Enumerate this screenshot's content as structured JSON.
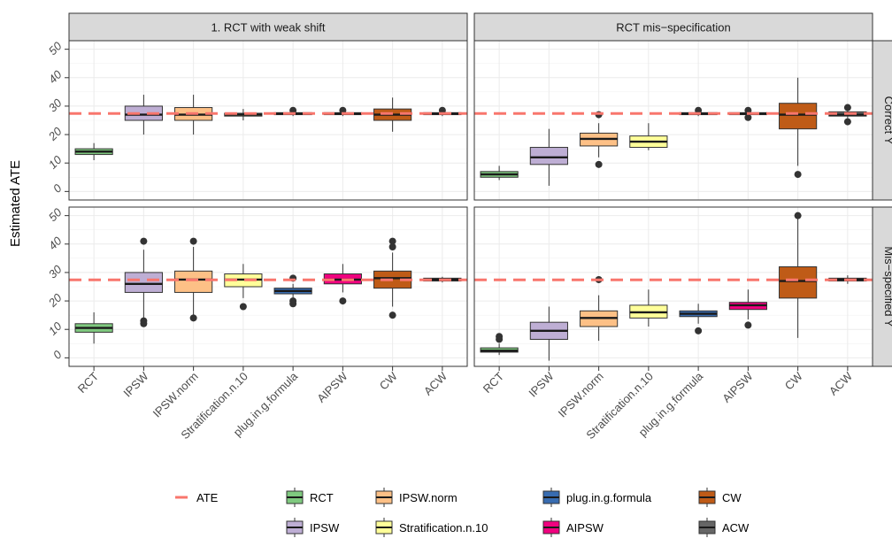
{
  "chart_data": {
    "type": "boxplot",
    "ylabel": "Estimated ATE",
    "xlabel": "",
    "ylim": [
      -3,
      53
    ],
    "yticks": [
      0,
      10,
      20,
      30,
      40,
      50
    ],
    "ate": 27.4,
    "categories": [
      "RCT",
      "IPSW",
      "IPSW.norm",
      "Stratification.n.10",
      "plug.in.g.formula",
      "AIPSW",
      "CW",
      "ACW"
    ],
    "columns": [
      "1. RCT with weak shift",
      "RCT mis−specification"
    ],
    "rows": [
      "Correct Y",
      "Mis−specified Y"
    ],
    "colors": {
      "RCT": "#7fc97f",
      "IPSW": "#beaed4",
      "IPSW.norm": "#fdc086",
      "Stratification.n.10": "#ffff99",
      "plug.in.g.formula": "#386cb0",
      "AIPSW": "#f0027f",
      "CW": "#bf5b17",
      "ACW": "#666666",
      "ate_line": "#f8766d"
    },
    "panels": [
      {
        "column": "1. RCT with weak shift",
        "row": "Correct Y",
        "boxes": [
          {
            "cat": "RCT",
            "min": 11,
            "q1": 13,
            "median": 14,
            "q3": 15,
            "max": 17,
            "outliers": []
          },
          {
            "cat": "IPSW",
            "min": 20,
            "q1": 25,
            "median": 27,
            "q3": 30,
            "max": 34,
            "outliers": []
          },
          {
            "cat": "IPSW.norm",
            "min": 20,
            "q1": 25,
            "median": 27,
            "q3": 29.5,
            "max": 34,
            "outliers": []
          },
          {
            "cat": "Stratification.n.10",
            "min": 25,
            "q1": 26.5,
            "median": 27,
            "q3": 27.5,
            "max": 29,
            "outliers": []
          },
          {
            "cat": "plug.in.g.formula",
            "min": 26.5,
            "q1": 27,
            "median": 27.3,
            "q3": 27.7,
            "max": 28,
            "outliers": [
              28.5
            ]
          },
          {
            "cat": "AIPSW",
            "min": 26.5,
            "q1": 27,
            "median": 27.3,
            "q3": 27.7,
            "max": 28,
            "outliers": [
              28.5
            ]
          },
          {
            "cat": "CW",
            "min": 21,
            "q1": 25,
            "median": 27,
            "q3": 29,
            "max": 33,
            "outliers": []
          },
          {
            "cat": "ACW",
            "min": 26.5,
            "q1": 27,
            "median": 27.3,
            "q3": 27.7,
            "max": 28,
            "outliers": [
              28.5
            ]
          }
        ]
      },
      {
        "column": "RCT mis−specification",
        "row": "Correct Y",
        "boxes": [
          {
            "cat": "RCT",
            "min": 4,
            "q1": 5,
            "median": 6,
            "q3": 7,
            "max": 9,
            "outliers": []
          },
          {
            "cat": "IPSW",
            "min": 2,
            "q1": 9.5,
            "median": 12,
            "q3": 15.5,
            "max": 22,
            "outliers": []
          },
          {
            "cat": "IPSW.norm",
            "min": 12,
            "q1": 16,
            "median": 18.5,
            "q3": 20.5,
            "max": 24,
            "outliers": [
              27,
              9.5
            ]
          },
          {
            "cat": "Stratification.n.10",
            "min": 14.5,
            "q1": 15.5,
            "median": 17.5,
            "q3": 19.5,
            "max": 24,
            "outliers": []
          },
          {
            "cat": "plug.in.g.formula",
            "min": 26.5,
            "q1": 27,
            "median": 27.3,
            "q3": 27.7,
            "max": 28,
            "outliers": [
              28.5
            ]
          },
          {
            "cat": "AIPSW",
            "min": 26,
            "q1": 27,
            "median": 27.3,
            "q3": 27.7,
            "max": 28,
            "outliers": [
              28.5,
              26
            ]
          },
          {
            "cat": "CW",
            "min": 9,
            "q1": 22,
            "median": 27,
            "q3": 31,
            "max": 40,
            "outliers": [
              6
            ]
          },
          {
            "cat": "ACW",
            "min": 25.5,
            "q1": 26.5,
            "median": 27,
            "q3": 28,
            "max": 29,
            "outliers": [
              29.5,
              24.5
            ]
          }
        ]
      },
      {
        "column": "1. RCT with weak shift",
        "row": "Mis−specified Y",
        "boxes": [
          {
            "cat": "RCT",
            "min": 5,
            "q1": 9,
            "median": 10.5,
            "q3": 12,
            "max": 16,
            "outliers": []
          },
          {
            "cat": "IPSW",
            "min": 14,
            "q1": 23,
            "median": 26,
            "q3": 30,
            "max": 38,
            "outliers": [
              41,
              13,
              12
            ]
          },
          {
            "cat": "IPSW.norm",
            "min": 15,
            "q1": 23,
            "median": 27.5,
            "q3": 30.5,
            "max": 39,
            "outliers": [
              41,
              14
            ]
          },
          {
            "cat": "Stratification.n.10",
            "min": 21,
            "q1": 25,
            "median": 27.5,
            "q3": 29.5,
            "max": 33,
            "outliers": [
              18
            ]
          },
          {
            "cat": "plug.in.g.formula",
            "min": 21,
            "q1": 22.5,
            "median": 23.5,
            "q3": 24.5,
            "max": 26,
            "outliers": [
              28,
              20,
              19
            ]
          },
          {
            "cat": "AIPSW",
            "min": 23,
            "q1": 26,
            "median": 27.5,
            "q3": 29.5,
            "max": 33,
            "outliers": [
              20
            ]
          },
          {
            "cat": "CW",
            "min": 18,
            "q1": 24.5,
            "median": 28,
            "q3": 30.5,
            "max": 37,
            "outliers": [
              41,
              39,
              15
            ]
          },
          {
            "cat": "ACW",
            "min": 26.5,
            "q1": 27,
            "median": 27.5,
            "q3": 28,
            "max": 28.5,
            "outliers": []
          }
        ]
      },
      {
        "column": "RCT mis−specification",
        "row": "Mis−specified Y",
        "boxes": [
          {
            "cat": "RCT",
            "min": 1,
            "q1": 2,
            "median": 2.5,
            "q3": 3.5,
            "max": 5,
            "outliers": [
              7.5,
              6.5
            ]
          },
          {
            "cat": "IPSW",
            "min": -1,
            "q1": 6.5,
            "median": 9.5,
            "q3": 12.5,
            "max": 18,
            "outliers": []
          },
          {
            "cat": "IPSW.norm",
            "min": 6,
            "q1": 11,
            "median": 14,
            "q3": 16.5,
            "max": 22,
            "outliers": [
              27.5
            ]
          },
          {
            "cat": "Stratification.n.10",
            "min": 11,
            "q1": 14,
            "median": 16,
            "q3": 18.5,
            "max": 24,
            "outliers": []
          },
          {
            "cat": "plug.in.g.formula",
            "min": 12,
            "q1": 14.5,
            "median": 15.5,
            "q3": 16.5,
            "max": 19,
            "outliers": [
              9.5
            ]
          },
          {
            "cat": "AIPSW",
            "min": 13.5,
            "q1": 17,
            "median": 18.5,
            "q3": 19.5,
            "max": 24,
            "outliers": [
              11.5
            ]
          },
          {
            "cat": "CW",
            "min": 7,
            "q1": 21,
            "median": 27,
            "q3": 32,
            "max": 49,
            "outliers": [
              50
            ]
          },
          {
            "cat": "ACW",
            "min": 26,
            "q1": 27,
            "median": 27.5,
            "q3": 28,
            "max": 29,
            "outliers": []
          }
        ]
      }
    ],
    "legend": {
      "position": "bottom",
      "items": [
        "ATE",
        "RCT",
        "IPSW",
        "IPSW.norm",
        "Stratification.n.10",
        "plug.in.g.formula",
        "AIPSW",
        "CW",
        "ACW"
      ]
    }
  }
}
